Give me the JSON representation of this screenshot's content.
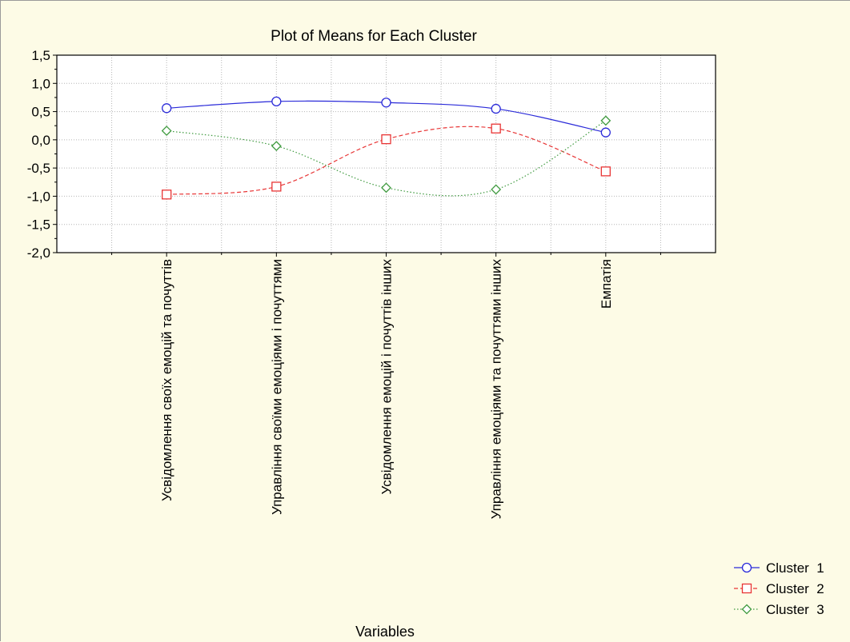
{
  "chart_data": {
    "type": "line",
    "title": "Plot of Means for Each Cluster",
    "xlabel": "Variables",
    "ylabel": "",
    "ylim": [
      -2.0,
      1.5
    ],
    "yticks": [
      "1,5",
      "1,0",
      "0,5",
      "0,0",
      "-0,5",
      "-1,0",
      "-1,5",
      "-2,0"
    ],
    "yticks_values": [
      1.5,
      1.0,
      0.5,
      0.0,
      -0.5,
      -1.0,
      -1.5,
      -2.0
    ],
    "categories": [
      "Усвідомлення своїх емоцій та почуттів",
      "Управління своїми емоціями і почуттями",
      "Усвідомлення емоцій і почуттів інших",
      "Управління емоціями та почуттями інших",
      "Емпатія"
    ],
    "grid": true,
    "legend_position": "bottom-right",
    "series": [
      {
        "name": "Cluster  1",
        "color": "#2b2bd9",
        "marker": "circle",
        "line": "solid",
        "values": [
          0.56,
          0.68,
          0.66,
          0.55,
          0.13
        ]
      },
      {
        "name": "Cluster  2",
        "color": "#e83535",
        "marker": "square",
        "line": "dashed",
        "values": [
          -0.97,
          -0.83,
          0.01,
          0.2,
          -0.56
        ]
      },
      {
        "name": "Cluster  3",
        "color": "#3f9a3f",
        "marker": "diamond",
        "line": "dotted",
        "values": [
          0.16,
          -0.11,
          -0.85,
          -0.88,
          0.34
        ]
      }
    ]
  }
}
